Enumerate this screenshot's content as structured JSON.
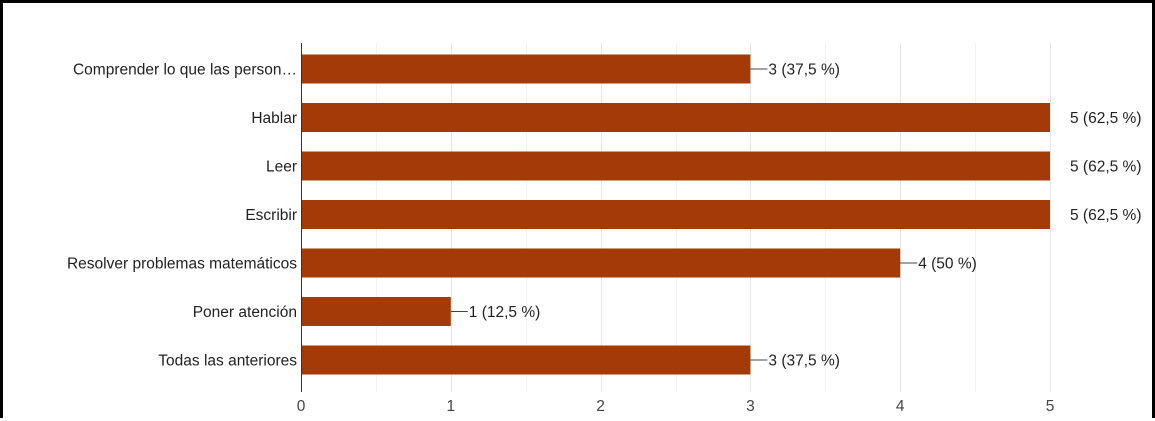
{
  "chart_data": {
    "type": "bar",
    "orientation": "horizontal",
    "categories": [
      "Comprender lo que las person…",
      "Hablar",
      "Leer",
      "Escribir",
      "Resolver problemas matemáticos",
      "Poner atención",
      "Todas las anteriores"
    ],
    "values": [
      3,
      5,
      5,
      5,
      4,
      1,
      3
    ],
    "data_labels": [
      "3 (37,5 %)",
      "5 (62,5 %)",
      "5 (62,5 %)",
      "5 (62,5 %)",
      "4 (50 %)",
      "1 (12,5 %)",
      "3 (37,5 %)"
    ],
    "x_ticks": [
      "0",
      "1",
      "2",
      "3",
      "4",
      "5"
    ],
    "xlim": [
      0,
      5
    ],
    "grid": true,
    "bar_color": "#a33a08",
    "gridline_color": "#e6e6e6",
    "axis_color": "#333333"
  }
}
